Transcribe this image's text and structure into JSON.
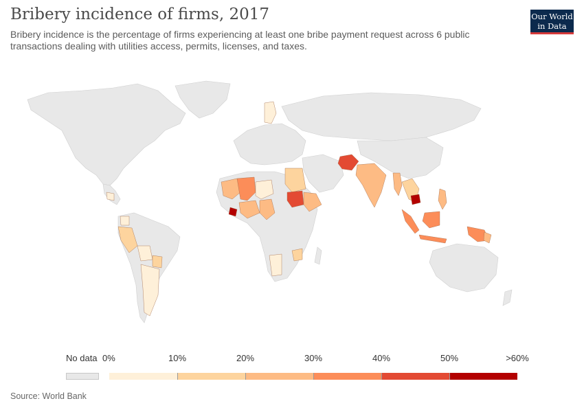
{
  "header": {
    "title": "Bribery incidence of firms, 2017",
    "subtitle": "Bribery incidence is the percentage of firms experiencing at least one bribe payment request across 6 public transactions dealing with utilities access, permits, licenses, and taxes."
  },
  "logo": {
    "line1": "Our World",
    "line2": "in Data"
  },
  "legend": {
    "no_data_label": "No data",
    "ticks": [
      "0%",
      "10%",
      "20%",
      "30%",
      "40%",
      "50%",
      ">60%"
    ],
    "bins": [
      {
        "range": "0-10",
        "color": "#fef0d9"
      },
      {
        "range": "10-20",
        "color": "#fdd49e"
      },
      {
        "range": "20-30",
        "color": "#fdbb84"
      },
      {
        "range": "30-40",
        "color": "#fc8d59"
      },
      {
        "range": "40-50",
        "color": "#e34a33"
      },
      {
        "range": "50-60",
        "color": "#b30000"
      }
    ],
    "no_data_color": "#e8e8e8"
  },
  "map": {
    "regions": [
      {
        "name": "North America",
        "value": null
      },
      {
        "name": "Greenland",
        "value": null
      },
      {
        "name": "Europe",
        "value": null
      },
      {
        "name": "Russia",
        "value": null
      },
      {
        "name": "Australia",
        "value": null
      },
      {
        "name": "Afghanistan",
        "bin": "40-50"
      },
      {
        "name": "India",
        "bin": "20-30"
      },
      {
        "name": "Cambodia",
        "bin": "50-60"
      },
      {
        "name": "Liberia",
        "bin": "50-60"
      },
      {
        "name": "South Sudan",
        "bin": "40-50"
      },
      {
        "name": "Indonesia",
        "bin": "30-40"
      },
      {
        "name": "Ethiopia",
        "bin": "20-30"
      },
      {
        "name": "Sudan",
        "bin": "10-20"
      },
      {
        "name": "Mauritania",
        "bin": "20-30"
      },
      {
        "name": "Mali",
        "bin": "30-40"
      },
      {
        "name": "Niger",
        "bin": "0-10"
      },
      {
        "name": "Peru",
        "bin": "10-20"
      },
      {
        "name": "Argentina",
        "bin": "0-10"
      },
      {
        "name": "Namibia",
        "bin": "0-10"
      },
      {
        "name": "Zambia",
        "bin": "10-20"
      }
    ]
  },
  "footer": {
    "source": "Source: World Bank"
  }
}
